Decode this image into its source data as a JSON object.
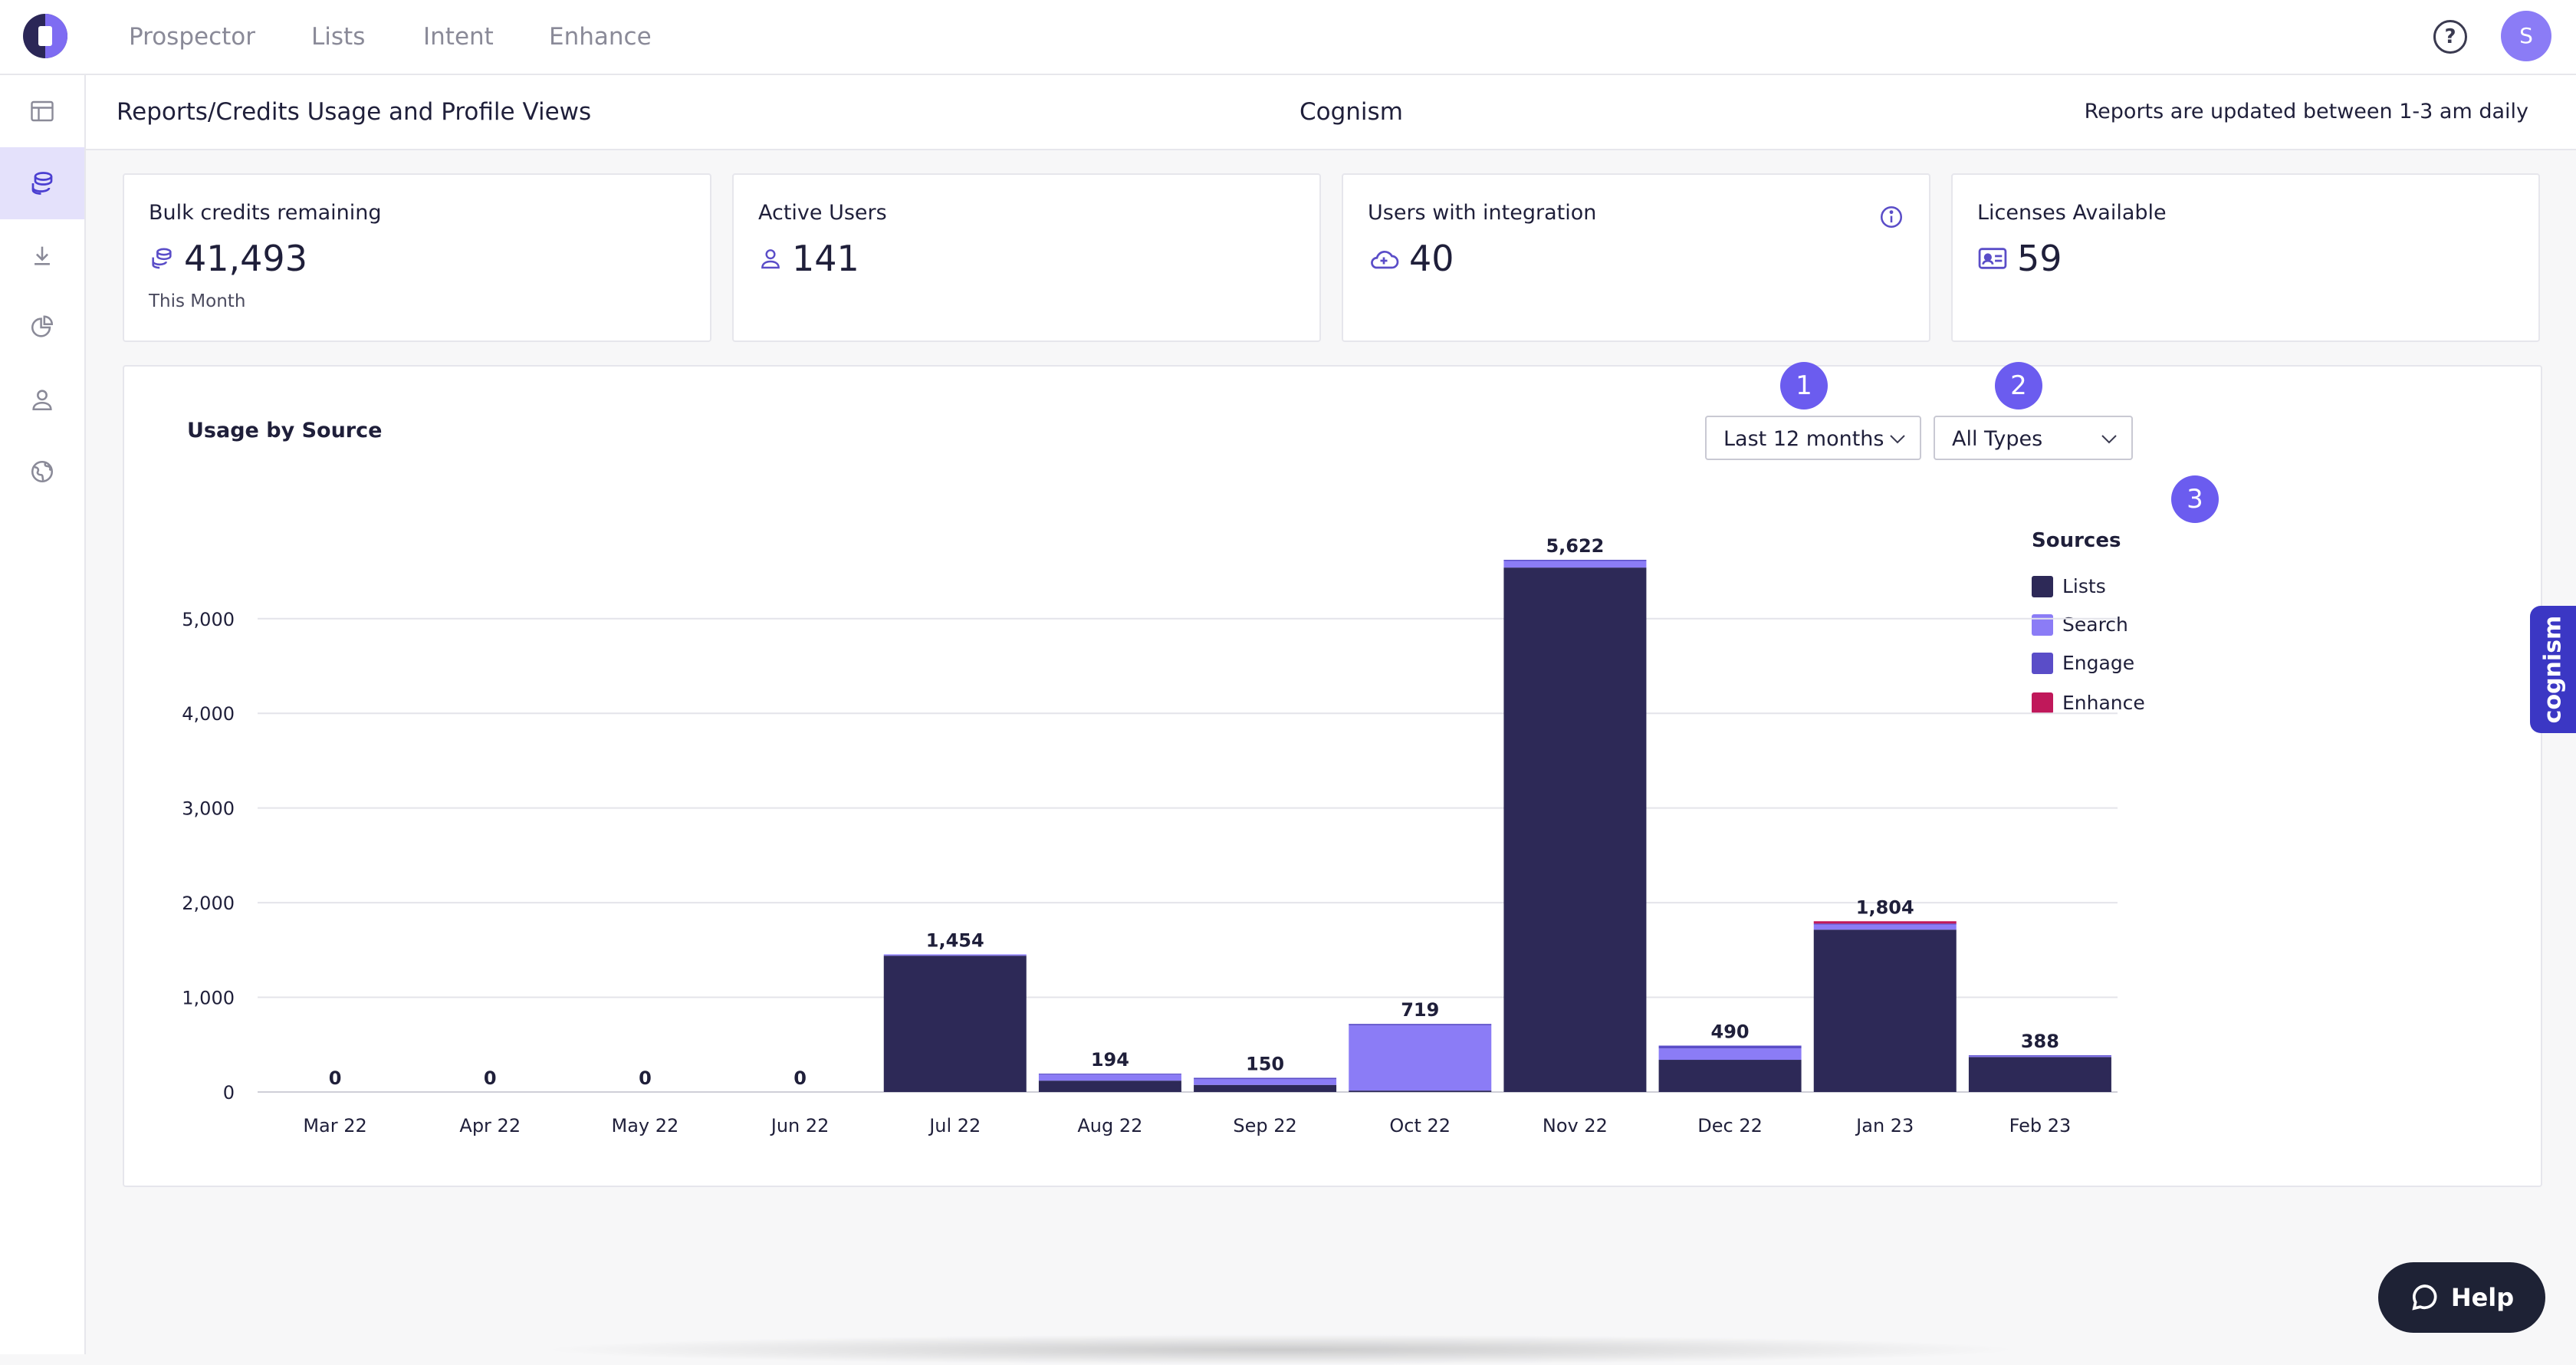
{
  "nav": {
    "items": [
      "Prospector",
      "Lists",
      "Intent",
      "Enhance"
    ],
    "help_icon": "question-circle-icon",
    "avatar_initial": "S"
  },
  "sidebar": {
    "icons": [
      "layout-icon",
      "credits-stack-icon",
      "download-icon",
      "pie-chart-icon",
      "user-icon",
      "globe-icon"
    ],
    "active_index": 1
  },
  "subheader": {
    "breadcrumb": "Reports/Credits Usage and Profile Views",
    "company": "Cognism",
    "update_note": "Reports are updated between 1-3 am daily"
  },
  "cards": [
    {
      "label": "Bulk credits remaining",
      "value": "41,493",
      "sub": "This Month",
      "icon": "coins-icon"
    },
    {
      "label": "Active Users",
      "value": "141",
      "icon": "user-icon"
    },
    {
      "label": "Users with integration",
      "value": "40",
      "icon": "cloud-plus-icon",
      "info_icon": "info-icon"
    },
    {
      "label": "Licenses Available",
      "value": "59",
      "icon": "id-card-icon"
    }
  ],
  "panel": {
    "title": "Usage by Source",
    "period_filter": "Last 12 months",
    "type_filter": "All Types",
    "markers": [
      "1",
      "2",
      "3"
    ]
  },
  "legend": {
    "title": "Sources",
    "items": [
      {
        "name": "Lists",
        "color": "#2d2957"
      },
      {
        "name": "Search",
        "color": "#8b7cf6"
      },
      {
        "name": "Engage",
        "color": "#5a4dc8"
      },
      {
        "name": "Enhance",
        "color": "#c0185a"
      }
    ]
  },
  "chart_data": {
    "type": "bar",
    "stacked": true,
    "categories": [
      "Mar 22",
      "Apr 22",
      "May 22",
      "Jun 22",
      "Jul 22",
      "Aug 22",
      "Sep 22",
      "Oct 22",
      "Nov 22",
      "Dec 22",
      "Jan 23",
      "Feb 23"
    ],
    "totals": [
      0,
      0,
      0,
      0,
      1454,
      194,
      150,
      719,
      5622,
      490,
      1804,
      388
    ],
    "total_labels": [
      "0",
      "0",
      "0",
      "0",
      "1,454",
      "194",
      "150",
      "719",
      "5,622",
      "490",
      "1,804",
      "388"
    ],
    "series": [
      {
        "name": "Lists",
        "color": "#2d2957",
        "values": [
          0,
          0,
          0,
          0,
          1440,
          120,
          75,
          15,
          5540,
          340,
          1715,
          370
        ]
      },
      {
        "name": "Search",
        "color": "#8b7cf6",
        "values": [
          0,
          0,
          0,
          0,
          14,
          64,
          60,
          689,
          70,
          120,
          55,
          12
        ]
      },
      {
        "name": "Engage",
        "color": "#5a4dc8",
        "values": [
          0,
          0,
          0,
          0,
          0,
          10,
          15,
          15,
          12,
          30,
          9,
          6
        ]
      },
      {
        "name": "Enhance",
        "color": "#c0185a",
        "values": [
          0,
          0,
          0,
          0,
          0,
          0,
          0,
          0,
          0,
          0,
          25,
          0
        ]
      }
    ],
    "yticks": [
      0,
      1000,
      2000,
      3000,
      4000,
      5000
    ],
    "ytick_labels": [
      "0",
      "1,000",
      "2,000",
      "3,000",
      "4,000",
      "5,000"
    ],
    "ylim": [
      0,
      5622
    ],
    "grid": true,
    "legend_position": "right"
  },
  "brand_tab": "cognism",
  "help_button": "Help"
}
